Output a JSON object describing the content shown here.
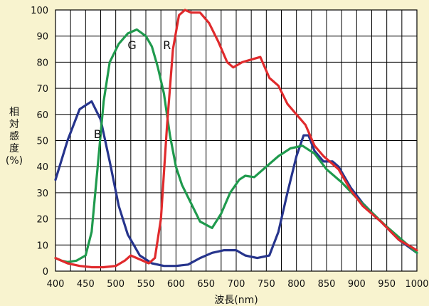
{
  "chart_data": {
    "type": "line",
    "xlabel": "波長(nm)",
    "ylabel": "相対感度(%)",
    "xlim": [
      400,
      1000
    ],
    "ylim": [
      0,
      100
    ],
    "x_ticks": [
      "400",
      "450",
      "500",
      "550",
      "600",
      "650",
      "700",
      "750",
      "800",
      "850",
      "900",
      "950",
      "1000"
    ],
    "y_ticks": [
      "0",
      "10",
      "20",
      "30",
      "40",
      "50",
      "60",
      "70",
      "80",
      "90",
      "100"
    ],
    "grid": true,
    "x_grid_step": 25,
    "y_grid_step": 10,
    "series": [
      {
        "name": "B",
        "color": "#26348c",
        "points": [
          [
            400,
            35
          ],
          [
            420,
            50
          ],
          [
            440,
            62
          ],
          [
            460,
            65
          ],
          [
            475,
            58
          ],
          [
            490,
            42
          ],
          [
            505,
            25
          ],
          [
            520,
            14
          ],
          [
            540,
            6
          ],
          [
            560,
            3
          ],
          [
            580,
            2
          ],
          [
            600,
            2
          ],
          [
            620,
            2.5
          ],
          [
            640,
            5
          ],
          [
            660,
            7
          ],
          [
            680,
            8
          ],
          [
            700,
            8
          ],
          [
            715,
            6
          ],
          [
            735,
            5
          ],
          [
            755,
            6
          ],
          [
            770,
            15
          ],
          [
            785,
            30
          ],
          [
            800,
            44
          ],
          [
            812,
            52
          ],
          [
            820,
            52
          ],
          [
            830,
            46
          ],
          [
            845,
            42
          ],
          [
            860,
            42
          ],
          [
            870,
            40
          ],
          [
            890,
            32
          ],
          [
            910,
            26
          ],
          [
            940,
            19
          ],
          [
            970,
            12
          ],
          [
            1000,
            7
          ]
        ]
      },
      {
        "name": "G",
        "color": "#1f9a4d",
        "points": [
          [
            400,
            5
          ],
          [
            410,
            4
          ],
          [
            420,
            3.5
          ],
          [
            435,
            4
          ],
          [
            450,
            6
          ],
          [
            460,
            15
          ],
          [
            470,
            40
          ],
          [
            480,
            65
          ],
          [
            490,
            80
          ],
          [
            505,
            87
          ],
          [
            520,
            91
          ],
          [
            535,
            92.5
          ],
          [
            550,
            90
          ],
          [
            560,
            86
          ],
          [
            570,
            78
          ],
          [
            580,
            68
          ],
          [
            590,
            52
          ],
          [
            600,
            40
          ],
          [
            610,
            33
          ],
          [
            625,
            26
          ],
          [
            640,
            19
          ],
          [
            660,
            16.5
          ],
          [
            675,
            22
          ],
          [
            690,
            30
          ],
          [
            705,
            35
          ],
          [
            715,
            36.5
          ],
          [
            730,
            36
          ],
          [
            750,
            40
          ],
          [
            770,
            44
          ],
          [
            790,
            47
          ],
          [
            810,
            48
          ],
          [
            830,
            45
          ],
          [
            850,
            39
          ],
          [
            875,
            34
          ],
          [
            900,
            28
          ],
          [
            950,
            17
          ],
          [
            1000,
            7
          ]
        ]
      },
      {
        "name": "R",
        "color": "#e02a2c",
        "points": [
          [
            400,
            5
          ],
          [
            420,
            3
          ],
          [
            440,
            2
          ],
          [
            460,
            1.5
          ],
          [
            480,
            1.5
          ],
          [
            500,
            2
          ],
          [
            515,
            4
          ],
          [
            525,
            6
          ],
          [
            540,
            4.5
          ],
          [
            555,
            3
          ],
          [
            565,
            5
          ],
          [
            575,
            20
          ],
          [
            585,
            55
          ],
          [
            595,
            85
          ],
          [
            605,
            98
          ],
          [
            615,
            100
          ],
          [
            625,
            99
          ],
          [
            640,
            99
          ],
          [
            655,
            95
          ],
          [
            670,
            88
          ],
          [
            685,
            80
          ],
          [
            695,
            78
          ],
          [
            710,
            80
          ],
          [
            725,
            81
          ],
          [
            740,
            82
          ],
          [
            755,
            74
          ],
          [
            770,
            71
          ],
          [
            785,
            64
          ],
          [
            800,
            60
          ],
          [
            815,
            56
          ],
          [
            830,
            48
          ],
          [
            845,
            44
          ],
          [
            860,
            41
          ],
          [
            870,
            39
          ],
          [
            890,
            31
          ],
          [
            910,
            25
          ],
          [
            940,
            19
          ],
          [
            970,
            12
          ],
          [
            1000,
            8
          ]
        ]
      }
    ]
  }
}
